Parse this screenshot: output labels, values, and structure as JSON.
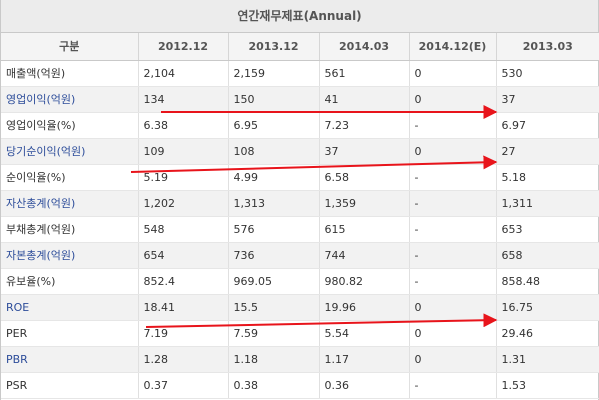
{
  "title": "연간재무제표(Annual)",
  "headers": [
    "구분",
    "2012.12",
    "2013.12",
    "2014.03",
    "2014.12(E)",
    "2013.03"
  ],
  "rows": [
    {
      "label": "매출액(억원)",
      "link": false,
      "values": [
        "2,104",
        "2,159",
        "561",
        "0",
        "530"
      ]
    },
    {
      "label": "영업이익(억원)",
      "link": true,
      "values": [
        "134",
        "150",
        "41",
        "0",
        "37"
      ]
    },
    {
      "label": "영업이익율(%)",
      "link": false,
      "values": [
        "6.38",
        "6.95",
        "7.23",
        "-",
        "6.97"
      ]
    },
    {
      "label": "당기순이익(억원)",
      "link": true,
      "values": [
        "109",
        "108",
        "37",
        "0",
        "27"
      ]
    },
    {
      "label": "순이익율(%)",
      "link": false,
      "values": [
        "5.19",
        "4.99",
        "6.58",
        "-",
        "5.18"
      ]
    },
    {
      "label": "자산총계(억원)",
      "link": true,
      "values": [
        "1,202",
        "1,313",
        "1,359",
        "-",
        "1,311"
      ]
    },
    {
      "label": "부채총계(억원)",
      "link": false,
      "values": [
        "548",
        "576",
        "615",
        "-",
        "653"
      ]
    },
    {
      "label": "자본총계(억원)",
      "link": true,
      "values": [
        "654",
        "736",
        "744",
        "-",
        "658"
      ]
    },
    {
      "label": "유보율(%)",
      "link": false,
      "values": [
        "852.4",
        "969.05",
        "980.82",
        "-",
        "858.48"
      ]
    },
    {
      "label": "ROE",
      "link": true,
      "values": [
        "18.41",
        "15.5",
        "19.96",
        "0",
        "16.75"
      ]
    },
    {
      "label": "PER",
      "link": false,
      "values": [
        "7.19",
        "7.59",
        "5.54",
        "0",
        "29.46"
      ]
    },
    {
      "label": "PBR",
      "link": true,
      "values": [
        "1.28",
        "1.18",
        "1.17",
        "0",
        "1.31"
      ]
    },
    {
      "label": "PSR",
      "link": false,
      "values": [
        "0.37",
        "0.38",
        "0.36",
        "-",
        "1.53"
      ]
    }
  ],
  "annotation_color": "#e8141b"
}
